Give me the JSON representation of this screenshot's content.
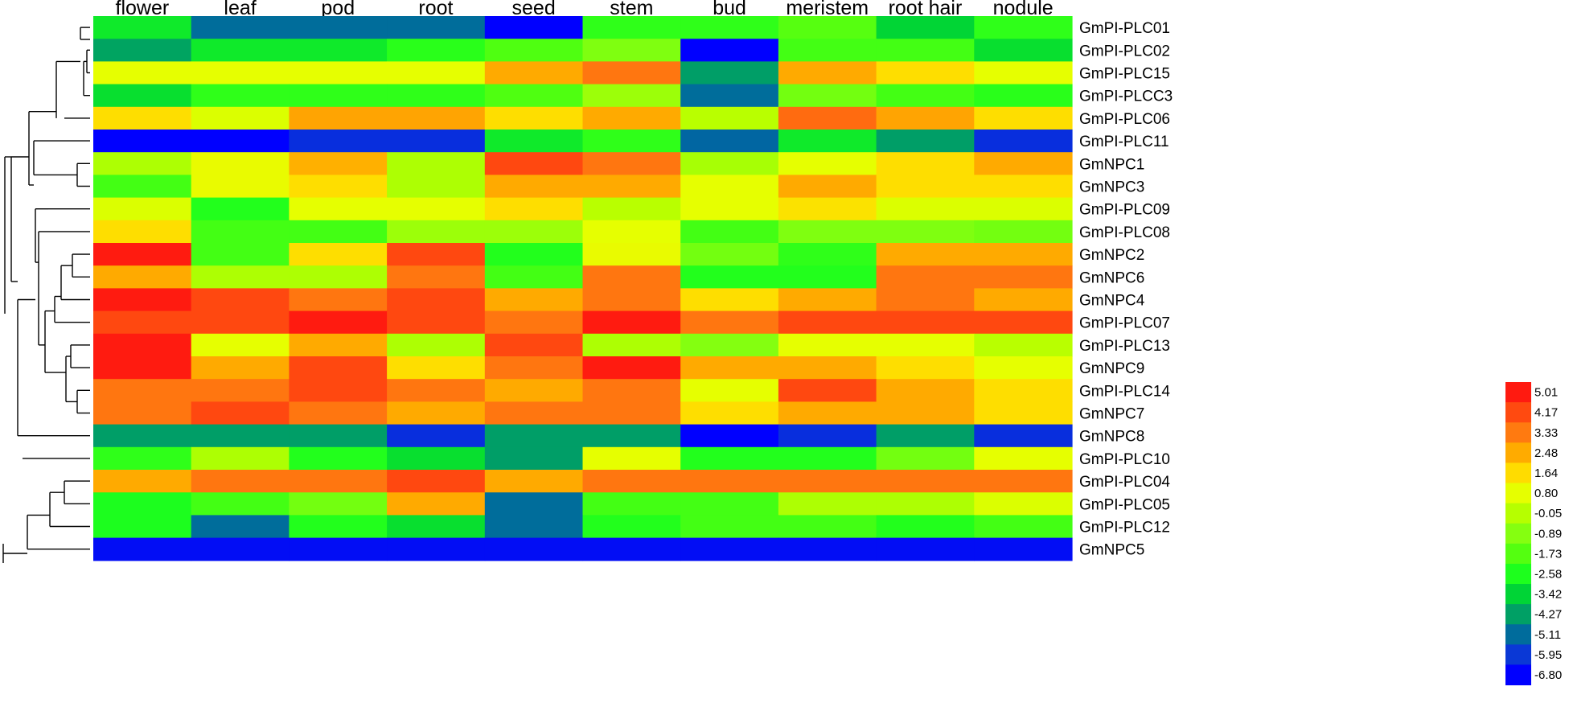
{
  "chart_data": {
    "type": "heatmap",
    "columns": [
      "flower",
      "leaf",
      "pod",
      "root",
      "seed",
      "stem",
      "bud",
      "meristem",
      "root hair",
      "nodule"
    ],
    "rows": [
      "GmPI-PLC01",
      "GmPI-PLC02",
      "GmPI-PLC15",
      "GmPI-PLCC3",
      "GmPI-PLC06",
      "GmPI-PLC11",
      "GmNPC1",
      "GmNPC3",
      "GmPI-PLC09",
      "GmPI-PLC08",
      "GmNPC2",
      "GmNPC6",
      "GmNPC4",
      "GmPI-PLC07",
      "GmPI-PLC13",
      "GmNPC9",
      "GmPI-PLC14",
      "GmNPC7",
      "GmNPC8",
      "GmPI-PLC10",
      "GmPI-PLC04",
      "GmPI-PLC05",
      "GmPI-PLC12",
      "GmNPC5"
    ],
    "values": [
      [
        -3.0,
        -5.1,
        -5.1,
        -5.1,
        -6.8,
        -2.3,
        -2.3,
        -1.7,
        -3.4,
        -2.3
      ],
      [
        -4.2,
        -3.0,
        -3.0,
        -2.4,
        -1.8,
        -1.0,
        -6.8,
        -2.0,
        -2.0,
        -3.2
      ],
      [
        0.8,
        0.8,
        0.8,
        0.8,
        2.5,
        3.4,
        -4.3,
        2.5,
        1.6,
        0.8
      ],
      [
        -3.2,
        -2.3,
        -2.3,
        -2.3,
        -1.8,
        -0.5,
        -5.1,
        -1.2,
        -2.0,
        -2.4
      ],
      [
        1.6,
        0.6,
        2.6,
        2.6,
        1.6,
        2.5,
        0.0,
        3.6,
        2.6,
        1.6
      ],
      [
        -6.8,
        -6.8,
        -6.1,
        -6.1,
        -3.0,
        -2.3,
        -5.2,
        -3.0,
        -4.3,
        -6.1
      ],
      [
        -0.2,
        0.9,
        2.4,
        -0.2,
        4.2,
        3.4,
        -0.3,
        0.8,
        1.6,
        2.5
      ],
      [
        -2.0,
        0.9,
        1.6,
        -0.2,
        2.5,
        2.5,
        0.8,
        2.5,
        1.6,
        1.6
      ],
      [
        0.6,
        -2.5,
        0.8,
        0.8,
        1.6,
        0.0,
        0.8,
        1.5,
        0.6,
        0.6
      ],
      [
        1.6,
        -2.0,
        -2.0,
        -0.5,
        -0.5,
        0.8,
        -2.0,
        -1.0,
        -1.0,
        -1.2
      ],
      [
        5.0,
        -2.0,
        1.6,
        4.2,
        -2.5,
        0.9,
        -1.2,
        -2.3,
        2.5,
        2.5
      ],
      [
        2.5,
        -0.2,
        -0.2,
        3.4,
        -2.0,
        3.4,
        -2.5,
        -2.5,
        3.4,
        3.4
      ],
      [
        5.0,
        4.2,
        3.4,
        4.2,
        2.5,
        3.4,
        1.6,
        2.5,
        3.4,
        2.5
      ],
      [
        4.2,
        4.2,
        5.0,
        4.2,
        3.4,
        5.0,
        3.4,
        4.2,
        4.2,
        4.2
      ],
      [
        5.0,
        0.8,
        2.5,
        -0.2,
        4.2,
        -0.2,
        -0.9,
        0.8,
        0.8,
        0.0
      ],
      [
        5.0,
        2.5,
        4.2,
        1.6,
        3.4,
        5.0,
        2.5,
        2.5,
        1.6,
        0.8
      ],
      [
        3.4,
        3.4,
        4.2,
        3.4,
        2.5,
        3.4,
        0.8,
        4.2,
        2.5,
        1.6
      ],
      [
        3.4,
        4.2,
        3.4,
        2.5,
        3.4,
        3.4,
        1.6,
        2.5,
        2.5,
        1.6
      ],
      [
        -4.3,
        -4.3,
        -4.3,
        -6.1,
        -4.3,
        -4.3,
        -6.8,
        -6.1,
        -4.3,
        -6.1
      ],
      [
        -2.3,
        -0.2,
        -2.5,
        -3.2,
        -4.3,
        0.8,
        -2.5,
        -2.5,
        -1.2,
        0.8
      ],
      [
        2.5,
        3.4,
        3.4,
        4.2,
        2.5,
        3.4,
        3.4,
        3.4,
        3.4,
        3.4
      ],
      [
        -2.6,
        -2.0,
        -1.2,
        2.5,
        -5.1,
        -2.0,
        -2.0,
        -0.2,
        -0.2,
        0.6
      ],
      [
        -2.6,
        -5.1,
        -2.5,
        -3.2,
        -5.1,
        -2.5,
        -2.0,
        -2.0,
        -2.5,
        -2.0
      ],
      [
        -6.6,
        -6.6,
        -6.6,
        -6.6,
        -6.6,
        -6.6,
        -6.6,
        -6.6,
        -6.6,
        -6.6
      ]
    ],
    "legend": {
      "ticks": [
        "5.01",
        "4.17",
        "3.33",
        "2.48",
        "1.64",
        "0.80",
        "-0.05",
        "-0.89",
        "-1.73",
        "-2.58",
        "-3.42",
        "-4.27",
        "-5.11",
        "-5.95",
        "-6.80"
      ],
      "colors": [
        "#ff1a10",
        "#ff4a10",
        "#ff7a10",
        "#ffab00",
        "#ffdc00",
        "#e6ff00",
        "#b6ff00",
        "#85ff10",
        "#54ff10",
        "#1dff1d",
        "#00d436",
        "#00a065",
        "#006c9c",
        "#0a38d6",
        "#0000ff"
      ],
      "position": "bottom-right"
    },
    "dendrogram": "left"
  }
}
